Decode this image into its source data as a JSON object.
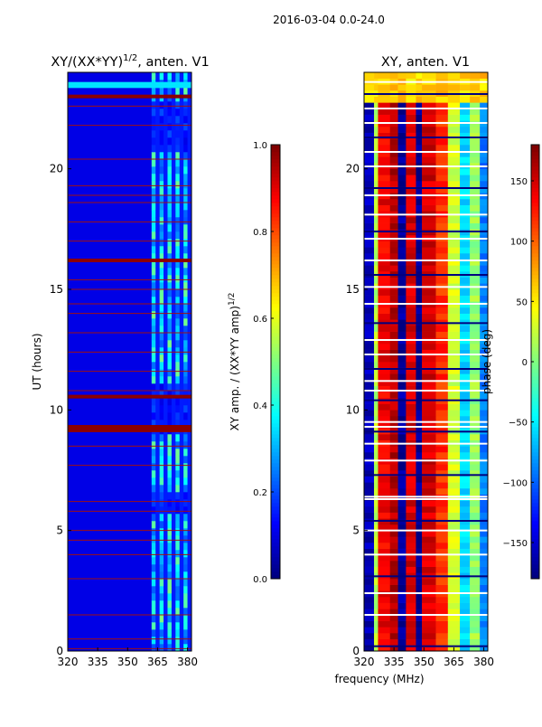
{
  "figure": {
    "suptitle": "2016-03-04 0.0-24.0",
    "xlabel_shared": "frequency (MHz)"
  },
  "chart_data": [
    {
      "type": "heatmap",
      "title_main": "XY/(XX*YY)",
      "title_sup": "1/2",
      "title_rest": ", anten. V1",
      "ylabel": "UT (hours)",
      "xlim": [
        320,
        382
      ],
      "ylim": [
        0,
        24
      ],
      "xticks": [
        320,
        335,
        350,
        365,
        380
      ],
      "yticks": [
        0,
        5,
        10,
        15,
        20
      ],
      "colorbar": {
        "label_main": "XY amp. / (XX*YY amp)",
        "label_sup": "1/2",
        "range": [
          0.0,
          1.0
        ],
        "ticks": [
          "0.0",
          "0.2",
          "0.4",
          "0.6",
          "0.8",
          "1.0"
        ],
        "colormap": "jet"
      },
      "background_value": 0.1,
      "high_band_freq": [
        362,
        382
      ],
      "high_band_value_range": [
        0.2,
        0.5
      ],
      "band_edge_freq": 362,
      "bright_rows_hours": [
        0.1,
        0.5,
        1.5,
        3.0,
        4.0,
        4.6,
        5.0,
        5.8,
        6.2,
        7.7,
        8.5,
        9.1,
        9.2,
        9.3,
        10.5,
        10.6,
        10.8,
        11.6,
        12.4,
        13.2,
        14.0,
        14.4,
        15.0,
        15.4,
        16.2,
        17.0,
        17.8,
        18.6,
        18.9,
        19.3,
        20.4,
        21.8,
        22.6,
        23.0
      ],
      "saturated_rows_hours": [
        9.15,
        9.3,
        10.55,
        16.2,
        23.0
      ],
      "top_band_hours": [
        23.35,
        23.6
      ],
      "top_band_value": 0.35
    },
    {
      "type": "heatmap",
      "title": "XY, anten. V1",
      "xlim": [
        320,
        382
      ],
      "ylim": [
        0,
        24
      ],
      "xticks": [
        320,
        335,
        350,
        365,
        380
      ],
      "yticks": [
        0,
        5,
        10,
        15,
        20
      ],
      "colorbar": {
        "label": "phase (deg)",
        "range": [
          -180,
          180
        ],
        "ticks": [
          "-150",
          "-100",
          "-50",
          "0",
          "50",
          "100",
          "150"
        ],
        "colormap": "jet"
      },
      "phase_columns": [
        {
          "from": 320,
          "to": 325,
          "phase": -160
        },
        {
          "from": 325,
          "to": 327,
          "phase": 20
        },
        {
          "from": 327,
          "to": 333,
          "phase": 140
        },
        {
          "from": 333,
          "to": 337,
          "phase": 160
        },
        {
          "from": 337,
          "to": 341,
          "phase": -170
        },
        {
          "from": 341,
          "to": 346,
          "phase": 150
        },
        {
          "from": 346,
          "to": 349,
          "phase": -175
        },
        {
          "from": 349,
          "to": 356,
          "phase": 150
        },
        {
          "from": 356,
          "to": 362,
          "phase": 120
        },
        {
          "from": 362,
          "to": 368,
          "phase": 30
        },
        {
          "from": 368,
          "to": 373,
          "phase": -60
        },
        {
          "from": 373,
          "to": 378,
          "phase": 10
        },
        {
          "from": 378,
          "to": 382,
          "phase": -90
        }
      ],
      "noise_rows_hours": [
        0.2,
        1.5,
        2.4,
        3.1,
        4.0,
        5.0,
        5.4,
        6.3,
        6.4,
        7.3,
        7.9,
        8.6,
        9.1,
        9.3,
        9.5,
        10.4,
        10.8,
        11.2,
        11.7,
        12.3,
        12.9,
        13.6,
        14.4,
        15.1,
        15.6,
        16.2,
        17.1,
        17.4,
        18.1,
        18.9,
        19.2,
        20.1,
        20.7,
        21.3,
        21.9,
        22.5,
        23.1,
        23.6
      ]
    }
  ]
}
